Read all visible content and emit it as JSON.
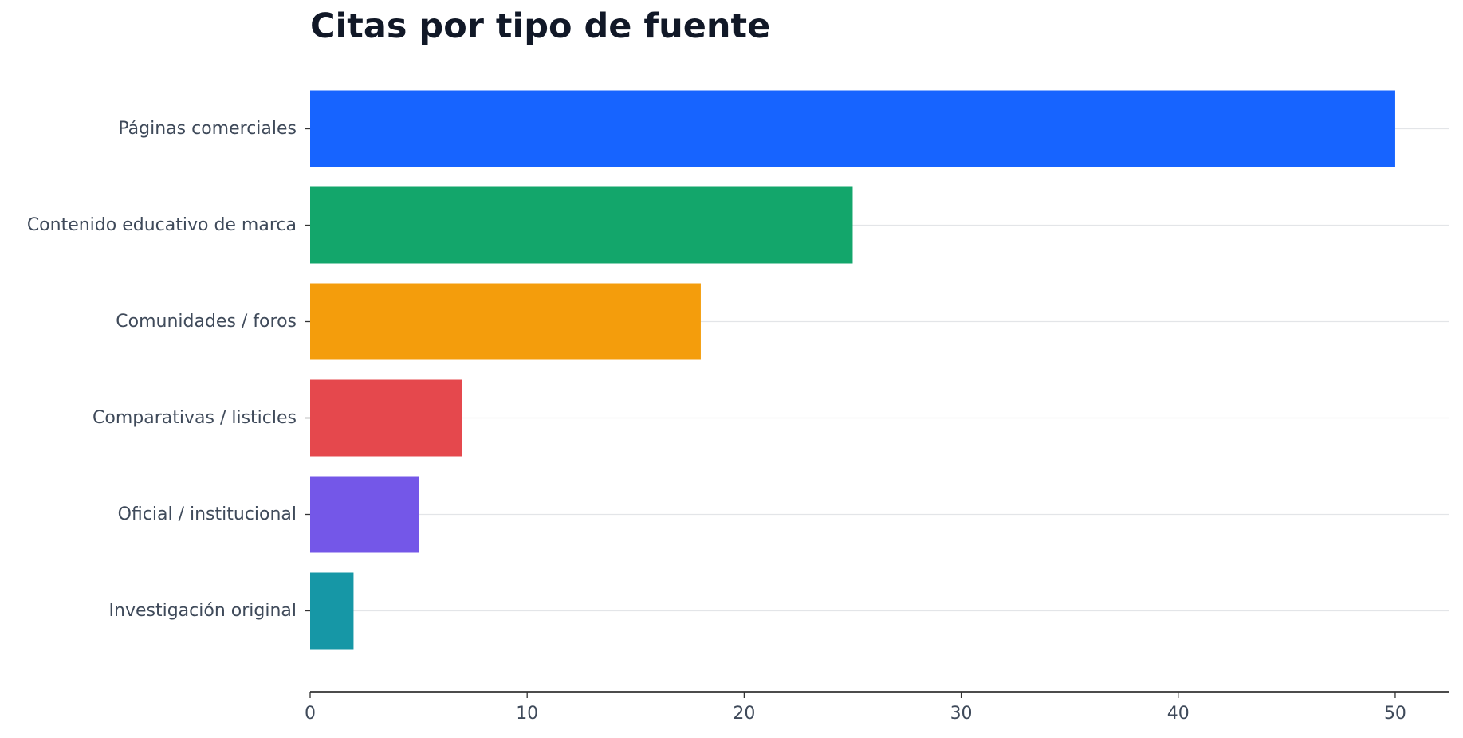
{
  "chart_data": {
    "type": "bar",
    "orientation": "horizontal",
    "title": "Citas por tipo de fuente",
    "xlabel": "",
    "ylabel": "",
    "categories": [
      "Páginas comerciales",
      "Contenido educativo de marca",
      "Comunidades / foros",
      "Comparativas / listicles",
      "Oficial / institucional",
      "Investigación original"
    ],
    "values": [
      50,
      25,
      18,
      7,
      5,
      2
    ],
    "colors": [
      "#1764ff",
      "#13a66b",
      "#f49d0c",
      "#e5484d",
      "#7457e8",
      "#1697a6"
    ],
    "xlim": [
      0,
      52.5
    ],
    "xticks": [
      0,
      10,
      20,
      30,
      40,
      50
    ],
    "grid": "horizontal-lines"
  }
}
